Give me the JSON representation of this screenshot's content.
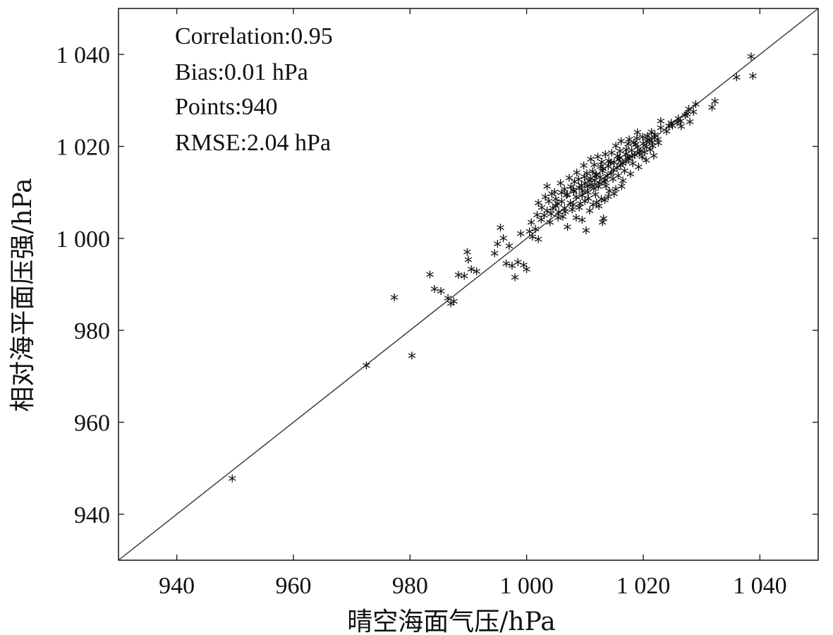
{
  "chart_data": {
    "type": "scatter",
    "xlabel": "晴空海面气压/hPa",
    "ylabel": "相对海平面压强/hPa",
    "xlim": [
      930,
      1050
    ],
    "ylim": [
      930,
      1050
    ],
    "x_ticks": [
      940,
      960,
      980,
      1000,
      1020,
      1040
    ],
    "y_ticks": [
      940,
      960,
      980,
      1000,
      1020,
      1040
    ],
    "x_tick_labels": [
      "940",
      "960",
      "980",
      "1 000",
      "1 020",
      "1 040"
    ],
    "y_tick_labels": [
      "940",
      "960",
      "980",
      "1 000",
      "1 020",
      "1 040"
    ],
    "reference_line": "y = x",
    "grid": false,
    "marker": "*",
    "stats": [
      "Correlation:0.95",
      "Bias:0.01 hPa",
      "Points:940",
      "RMSE:2.04 hPa"
    ],
    "points": [
      [
        949.5,
        947.3
      ],
      [
        972.5,
        971.8
      ],
      [
        977.3,
        986.6
      ],
      [
        980.3,
        974.0
      ],
      [
        983.4,
        991.6
      ],
      [
        984.2,
        988.5
      ],
      [
        985.3,
        988.0
      ],
      [
        986.5,
        986.5
      ],
      [
        987.0,
        985.3
      ],
      [
        987.5,
        985.8
      ],
      [
        988.3,
        991.5
      ],
      [
        989.3,
        991.3
      ],
      [
        989.8,
        996.5
      ],
      [
        990.0,
        994.8
      ],
      [
        990.5,
        992.8
      ],
      [
        991.4,
        992.3
      ],
      [
        994.5,
        996.2
      ],
      [
        995.0,
        998.3
      ],
      [
        995.5,
        1001.8
      ],
      [
        996.0,
        999.5
      ],
      [
        996.5,
        994.0
      ],
      [
        997.0,
        997.8
      ],
      [
        997.5,
        993.5
      ],
      [
        998.0,
        991.0
      ],
      [
        998.5,
        994.3
      ],
      [
        999.0,
        1000.5
      ],
      [
        999.5,
        993.7
      ],
      [
        1000.0,
        992.8
      ],
      [
        1000.5,
        1001.0
      ],
      [
        1001.0,
        999.8
      ],
      [
        1001.5,
        1001.5
      ],
      [
        1002.0,
        999.3
      ],
      [
        1002.5,
        1003.6
      ],
      [
        1003.0,
        1004.5
      ],
      [
        1003.5,
        1005.5
      ],
      [
        1004.0,
        1003.0
      ],
      [
        1004.5,
        1006.0
      ],
      [
        1005.0,
        1008.0
      ],
      [
        1005.5,
        1005.2
      ],
      [
        1006.0,
        1007.5
      ],
      [
        1006.5,
        1006.0
      ],
      [
        1007.0,
        1009.0
      ],
      [
        1007.5,
        1007.2
      ],
      [
        1008.0,
        1010.0
      ],
      [
        1008.5,
        1008.5
      ],
      [
        1009.0,
        1010.5
      ],
      [
        1009.5,
        1008.8
      ],
      [
        1010.0,
        1011.5
      ],
      [
        1010.5,
        1009.5
      ],
      [
        1011.0,
        1012.5
      ],
      [
        1011.5,
        1010.3
      ],
      [
        1012.0,
        1013.2
      ],
      [
        1012.5,
        1011.5
      ],
      [
        1013.0,
        1014.2
      ],
      [
        1013.5,
        1012.2
      ],
      [
        1014.0,
        1015.2
      ],
      [
        1014.5,
        1013.6
      ],
      [
        1015.0,
        1016.0
      ],
      [
        1015.5,
        1014.8
      ],
      [
        1016.0,
        1017.0
      ],
      [
        1016.5,
        1015.8
      ],
      [
        1017.0,
        1017.8
      ],
      [
        1017.5,
        1016.8
      ],
      [
        1018.0,
        1018.6
      ],
      [
        1018.5,
        1017.6
      ],
      [
        1019.0,
        1019.3
      ],
      [
        1019.5,
        1018.5
      ],
      [
        1020.0,
        1020.1
      ],
      [
        1020.5,
        1019.4
      ],
      [
        1021.0,
        1021.0
      ],
      [
        1021.5,
        1020.4
      ],
      [
        1022.0,
        1022.0
      ],
      [
        1022.5,
        1021.0
      ],
      [
        1023.0,
        1023.5
      ],
      [
        1024.0,
        1022.8
      ],
      [
        1025.0,
        1024.0
      ],
      [
        1026.0,
        1025.5
      ],
      [
        1026.5,
        1023.8
      ],
      [
        1027.5,
        1026.5
      ],
      [
        1028.0,
        1024.8
      ],
      [
        1029.0,
        1028.7
      ],
      [
        1031.8,
        1028.0
      ],
      [
        1032.3,
        1029.3
      ],
      [
        1036.0,
        1034.5
      ],
      [
        1038.5,
        1039.0
      ],
      [
        1038.8,
        1034.8
      ],
      [
        1003.5,
        1010.8
      ],
      [
        1005.8,
        1011.5
      ],
      [
        1007.3,
        1012.6
      ],
      [
        1008.6,
        1013.8
      ],
      [
        1009.8,
        1015.3
      ],
      [
        1011.0,
        1016.7
      ],
      [
        1012.2,
        1017.2
      ],
      [
        1013.5,
        1017.8
      ],
      [
        1015.3,
        1019.6
      ],
      [
        1016.2,
        1020.6
      ],
      [
        1017.6,
        1021.0
      ],
      [
        1019.0,
        1022.5
      ],
      [
        1007.0,
        1002.0
      ],
      [
        1008.5,
        1004.0
      ],
      [
        1009.5,
        1003.5
      ],
      [
        1010.2,
        1001.2
      ],
      [
        1010.8,
        1005.5
      ],
      [
        1012.0,
        1007.3
      ],
      [
        1012.8,
        1008.0
      ],
      [
        1013.2,
        1003.8
      ],
      [
        1013.0,
        1003.0
      ],
      [
        1014.2,
        1009.8
      ],
      [
        1015.3,
        1010.2
      ],
      [
        1016.5,
        1012.0
      ],
      [
        1017.8,
        1013.5
      ],
      [
        1019.2,
        1015.0
      ],
      [
        1020.5,
        1016.5
      ],
      [
        1021.8,
        1017.5
      ],
      [
        1006.2,
        1004.2
      ],
      [
        1007.8,
        1005.7
      ],
      [
        1009.2,
        1007.0
      ],
      [
        1010.6,
        1008.2
      ],
      [
        1011.8,
        1009.0
      ],
      [
        1013.6,
        1010.9
      ],
      [
        1014.8,
        1012.4
      ],
      [
        1016.8,
        1014.2
      ],
      [
        1018.2,
        1015.8
      ],
      [
        1019.8,
        1017.2
      ],
      [
        1021.2,
        1018.8
      ],
      [
        1022.6,
        1020.2
      ],
      [
        1004.8,
        1009.6
      ],
      [
        1006.5,
        1010.2
      ],
      [
        1008.2,
        1011.8
      ],
      [
        1009.9,
        1012.9
      ],
      [
        1011.3,
        1014.0
      ],
      [
        1012.7,
        1015.1
      ],
      [
        1014.1,
        1016.3
      ],
      [
        1015.6,
        1017.4
      ],
      [
        1017.1,
        1018.8
      ],
      [
        1018.4,
        1020.3
      ],
      [
        1019.9,
        1021.5
      ],
      [
        1021.4,
        1022.6
      ],
      [
        1002.0,
        1007.2
      ],
      [
        1003.2,
        1008.5
      ],
      [
        1004.3,
        1009.2
      ],
      [
        1005.3,
        1007.0
      ],
      [
        1006.8,
        1008.9
      ],
      [
        1008.1,
        1009.7
      ],
      [
        1009.4,
        1011.0
      ],
      [
        1010.7,
        1012.0
      ],
      [
        1011.9,
        1013.3
      ],
      [
        1013.1,
        1014.6
      ],
      [
        1014.4,
        1015.9
      ],
      [
        1015.8,
        1016.6
      ],
      [
        1017.3,
        1017.1
      ],
      [
        1018.7,
        1019.9
      ],
      [
        1020.2,
        1018.2
      ],
      [
        1021.6,
        1019.6
      ],
      [
        1023.0,
        1025.0
      ],
      [
        1024.4,
        1023.9
      ],
      [
        1025.8,
        1024.7
      ],
      [
        1027.2,
        1026.2
      ],
      [
        1027.8,
        1027.6
      ],
      [
        1028.6,
        1027.0
      ],
      [
        1026.4,
        1025.0
      ],
      [
        1024.8,
        1024.6
      ],
      [
        1000.8,
        1003.0
      ],
      [
        1001.8,
        1004.6
      ],
      [
        1002.6,
        1006.2
      ],
      [
        1003.8,
        1007.6
      ],
      [
        1005.0,
        1006.6
      ],
      [
        1006.0,
        1009.4
      ],
      [
        1007.6,
        1010.7
      ],
      [
        1008.9,
        1012.3
      ],
      [
        1010.3,
        1013.6
      ],
      [
        1011.6,
        1015.5
      ],
      [
        1012.9,
        1016.1
      ],
      [
        1014.6,
        1018.1
      ],
      [
        1016.0,
        1018.5
      ],
      [
        1017.4,
        1020.0
      ],
      [
        1018.9,
        1021.2
      ],
      [
        1020.7,
        1021.8
      ],
      [
        1011.4,
        1006.8
      ],
      [
        1012.4,
        1006.5
      ],
      [
        1013.4,
        1007.8
      ],
      [
        1014.0,
        1008.6
      ],
      [
        1015.0,
        1009.2
      ],
      [
        1016.3,
        1010.8
      ],
      [
        1009.0,
        1006.2
      ],
      [
        1010.0,
        1007.6
      ],
      [
        1008.0,
        1006.8
      ],
      [
        1006.6,
        1005.3
      ],
      [
        1005.4,
        1004.0
      ],
      [
        1004.2,
        1004.8
      ],
      [
        1012.6,
        1012.8
      ],
      [
        1013.8,
        1013.0
      ],
      [
        1011.2,
        1011.2
      ],
      [
        1014.9,
        1014.4
      ],
      [
        1016.1,
        1015.4
      ],
      [
        1010.4,
        1010.8
      ],
      [
        1009.6,
        1009.8
      ],
      [
        1012.3,
        1010.7
      ],
      [
        1013.3,
        1011.8
      ],
      [
        1011.7,
        1012.1
      ],
      [
        1015.7,
        1013.1
      ],
      [
        1017.0,
        1016.2
      ],
      [
        1018.1,
        1017.3
      ],
      [
        1019.3,
        1018.0
      ],
      [
        1020.6,
        1020.6
      ],
      [
        1021.9,
        1021.4
      ]
    ]
  }
}
